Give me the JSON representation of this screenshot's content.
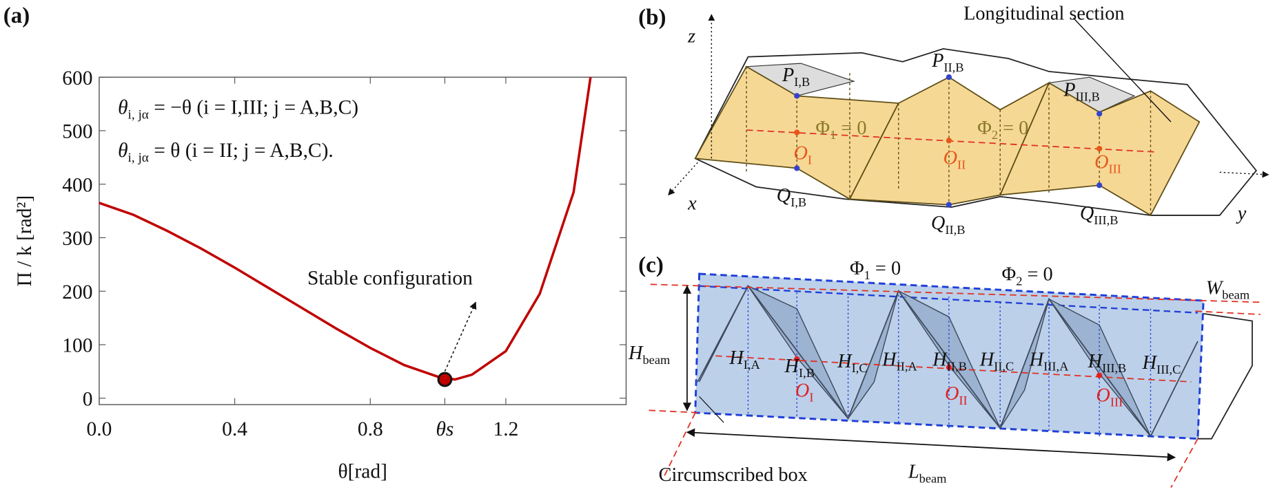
{
  "chart_data": {
    "type": "line",
    "panel": "(a)",
    "x_label": "θ[rad]",
    "y_label": "Π / k [rad²]",
    "x": [
      0,
      0.1,
      0.2,
      0.3,
      0.4,
      0.5,
      0.6,
      0.7,
      0.8,
      0.9,
      1.0,
      1.05,
      1.1,
      1.2,
      1.3,
      1.4,
      1.45
    ],
    "values": [
      365,
      343,
      313,
      280,
      244,
      206,
      168,
      130,
      94,
      62,
      40,
      35,
      44,
      88,
      195,
      385,
      600
    ],
    "color": "#c00000",
    "xlim": [
      0,
      1.555
    ],
    "ylim": [
      -12,
      600
    ],
    "xticks": [
      {
        "value": 0,
        "label": "0.0"
      },
      0.4,
      0.8,
      {
        "value": 1.02,
        "label": "θs"
      },
      1.2
    ],
    "yticks": [
      0,
      100,
      200,
      300,
      400,
      500,
      600
    ],
    "point": {
      "x": 1.02,
      "y": 35
    },
    "annotation": "Stable configuration",
    "formulas": [
      {
        "text": "θ",
        "sub": "i, jα",
        "after": " = −θ (i = I,III; j = A,B,C)"
      },
      {
        "text": "θ",
        "sub": "i, jα",
        "after": " = θ (i = II; j = A,B,C)."
      }
    ]
  },
  "diagram_b": {
    "labels": [
      {
        "text": "(b)"
      },
      {
        "text": "Longitudinal section"
      },
      {
        "text": "z"
      },
      {
        "text": "x"
      },
      {
        "text": "y"
      },
      {
        "text": "P",
        "sub": "I,B"
      },
      {
        "text": "P",
        "sub": "II,B"
      },
      {
        "text": "P",
        "sub": "III,B"
      },
      {
        "text": "Q",
        "sub": "I,B"
      },
      {
        "text": "Q",
        "sub": "II,B"
      },
      {
        "text": "Q",
        "sub": "III,B"
      },
      {
        "text": "O",
        "sub": "I"
      },
      {
        "text": "O",
        "sub": "II"
      },
      {
        "text": "O",
        "sub": "III"
      },
      {
        "text": "Φ",
        "sub": "1",
        "after": " = 0"
      },
      {
        "text": "Φ",
        "sub": "2",
        "after": " = 0"
      }
    ]
  },
  "diagram_c": {
    "labels": [
      {
        "text": "(c)"
      },
      {
        "text": "Φ",
        "sub": "1",
        "after": " = 0"
      },
      {
        "text": "Φ",
        "sub": "2",
        "after": " = 0"
      },
      {
        "text": "W",
        "sub": "beam"
      },
      {
        "text": "H",
        "sub": "beam"
      },
      {
        "text": "H",
        "sub": "I,A"
      },
      {
        "text": "H",
        "sub": "I,B"
      },
      {
        "text": "H",
        "sub": "I,C"
      },
      {
        "text": "H",
        "sub": "II,A"
      },
      {
        "text": "H",
        "sub": "II,B"
      },
      {
        "text": "H",
        "sub": "II,C"
      },
      {
        "text": "H",
        "sub": "III,A"
      },
      {
        "text": "H",
        "sub": "III,B"
      },
      {
        "text": "H",
        "sub": "III,C"
      },
      {
        "text": "O",
        "sub": "I"
      },
      {
        "text": "O",
        "sub": "II"
      },
      {
        "text": "O",
        "sub": "III"
      },
      {
        "text": "L",
        "sub": "beam"
      },
      {
        "text": "Circumscribed box"
      }
    ]
  }
}
